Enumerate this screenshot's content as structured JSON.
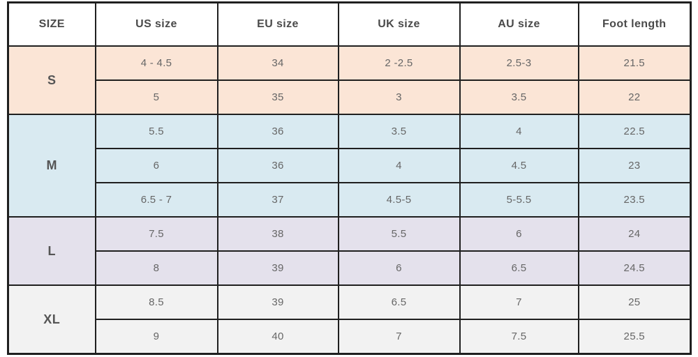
{
  "colors": {
    "group_s_bg": "#fbe5d6",
    "group_m_bg": "#d9eaf1",
    "group_l_bg": "#e4e1ec",
    "group_xl_bg": "#f2f2f2",
    "border": "#1f1f1f",
    "header_text": "#4a4a4a",
    "cell_text": "#666666"
  },
  "chart_data": {
    "type": "table",
    "columns": [
      "SIZE",
      "US size",
      "EU size",
      "UK size",
      "AU size",
      "Foot length"
    ],
    "groups": [
      {
        "size": "S",
        "color": "#fbe5d6",
        "rows": [
          [
            "4 - 4.5",
            "34",
            "2 -2.5",
            "2.5-3",
            "21.5"
          ],
          [
            "5",
            "35",
            "3",
            "3.5",
            "22"
          ]
        ]
      },
      {
        "size": "M",
        "color": "#d9eaf1",
        "rows": [
          [
            "5.5",
            "36",
            "3.5",
            "4",
            "22.5"
          ],
          [
            "6",
            "36",
            "4",
            "4.5",
            "23"
          ],
          [
            "6.5 - 7",
            "37",
            "4.5-5",
            "5-5.5",
            "23.5"
          ]
        ]
      },
      {
        "size": "L",
        "color": "#e4e1ec",
        "rows": [
          [
            "7.5",
            "38",
            "5.5",
            "6",
            "24"
          ],
          [
            "8",
            "39",
            "6",
            "6.5",
            "24.5"
          ]
        ]
      },
      {
        "size": "XL",
        "color": "#f2f2f2",
        "rows": [
          [
            "8.5",
            "39",
            "6.5",
            "7",
            "25"
          ],
          [
            "9",
            "40",
            "7",
            "7.5",
            "25.5"
          ]
        ]
      }
    ]
  }
}
